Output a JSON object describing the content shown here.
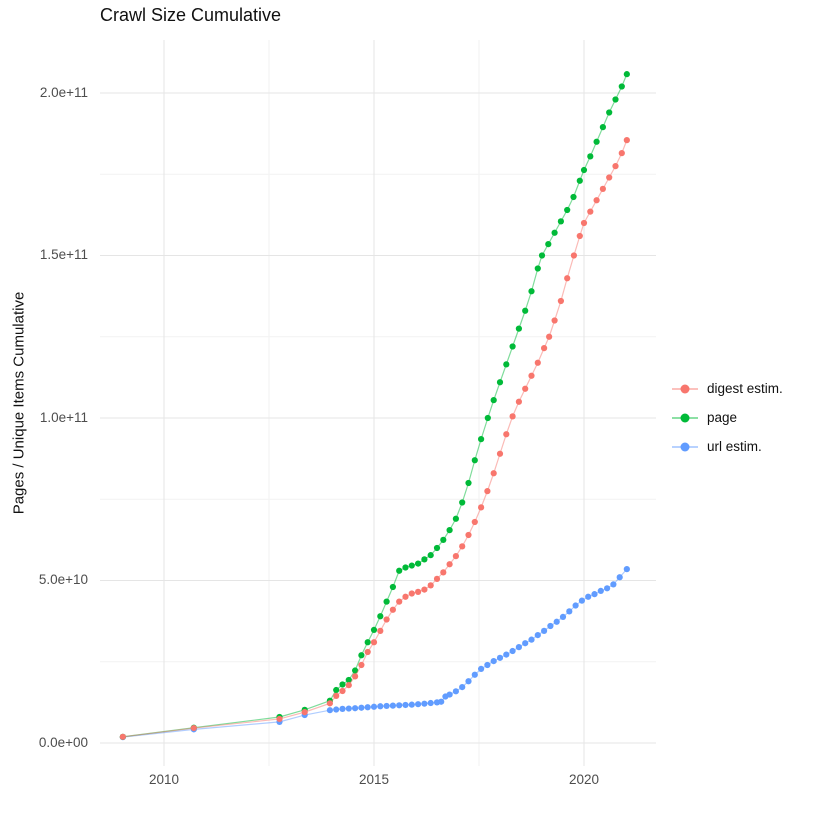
{
  "chart_data": {
    "type": "scatter",
    "title": "Crawl Size Cumulative",
    "xlabel": "",
    "ylabel": "Pages / Unique Items Cumulative",
    "y_unit": "pages (values in billions, 1e9)",
    "xlim": [
      2008.5,
      2021.7
    ],
    "ylim": [
      0,
      216
    ],
    "grid": "on",
    "legend_position": "right-middle",
    "x_ticks": [
      {
        "label": "2010",
        "value": 2010
      },
      {
        "label": "2015",
        "value": 2015
      },
      {
        "label": "2020",
        "value": 2020
      }
    ],
    "x_minor": [
      2012.5,
      2017.5
    ],
    "y_ticks": [
      {
        "label": "0.0e+00",
        "value": 0
      },
      {
        "label": "5.0e+10",
        "value": 50
      },
      {
        "label": "1.0e+11",
        "value": 100
      },
      {
        "label": "1.5e+11",
        "value": 150
      },
      {
        "label": "2.0e+11",
        "value": 200
      }
    ],
    "y_minor": [
      25,
      75,
      125,
      175
    ],
    "series": [
      {
        "name": "digest estim.",
        "color": "#F8766D",
        "points": [
          [
            2009.02,
            1.9
          ],
          [
            2010.71,
            4.6
          ],
          [
            2012.75,
            7.4
          ],
          [
            2013.35,
            9.5
          ],
          [
            2013.95,
            12.2
          ],
          [
            2014.1,
            14.5
          ],
          [
            2014.25,
            16.0
          ],
          [
            2014.4,
            17.8
          ],
          [
            2014.55,
            20.5
          ],
          [
            2014.7,
            24.0
          ],
          [
            2014.85,
            28.0
          ],
          [
            2015.0,
            31.0
          ],
          [
            2015.15,
            34.5
          ],
          [
            2015.3,
            38.0
          ],
          [
            2015.45,
            41.0
          ],
          [
            2015.6,
            43.5
          ],
          [
            2015.75,
            45.0
          ],
          [
            2015.9,
            46.0
          ],
          [
            2016.05,
            46.5
          ],
          [
            2016.2,
            47.2
          ],
          [
            2016.35,
            48.5
          ],
          [
            2016.5,
            50.5
          ],
          [
            2016.65,
            52.5
          ],
          [
            2016.8,
            55.0
          ],
          [
            2016.95,
            57.5
          ],
          [
            2017.1,
            60.5
          ],
          [
            2017.25,
            64.0
          ],
          [
            2017.4,
            68.0
          ],
          [
            2017.55,
            72.5
          ],
          [
            2017.7,
            77.5
          ],
          [
            2017.85,
            83.0
          ],
          [
            2018.0,
            89.0
          ],
          [
            2018.15,
            95.0
          ],
          [
            2018.3,
            100.5
          ],
          [
            2018.45,
            105.0
          ],
          [
            2018.6,
            109.0
          ],
          [
            2018.75,
            113.0
          ],
          [
            2018.9,
            117.0
          ],
          [
            2019.05,
            121.5
          ],
          [
            2019.17,
            125.0
          ],
          [
            2019.3,
            130.0
          ],
          [
            2019.45,
            136.0
          ],
          [
            2019.6,
            143.0
          ],
          [
            2019.76,
            150.0
          ],
          [
            2019.9,
            156.0
          ],
          [
            2020.0,
            160.0
          ],
          [
            2020.15,
            163.5
          ],
          [
            2020.3,
            167.0
          ],
          [
            2020.45,
            170.5
          ],
          [
            2020.6,
            174.0
          ],
          [
            2020.75,
            177.5
          ],
          [
            2020.9,
            181.5
          ],
          [
            2021.02,
            185.5
          ]
        ]
      },
      {
        "name": "page",
        "color": "#00BA38",
        "points": [
          [
            2009.02,
            1.9
          ],
          [
            2010.71,
            4.7
          ],
          [
            2012.75,
            8.0
          ],
          [
            2013.35,
            10.2
          ],
          [
            2013.95,
            13.0
          ],
          [
            2014.1,
            16.3
          ],
          [
            2014.25,
            18.0
          ],
          [
            2014.4,
            19.4
          ],
          [
            2014.55,
            22.3
          ],
          [
            2014.7,
            27.0
          ],
          [
            2014.85,
            31.0
          ],
          [
            2015.0,
            34.8
          ],
          [
            2015.15,
            39.0
          ],
          [
            2015.3,
            43.5
          ],
          [
            2015.45,
            48.0
          ],
          [
            2015.6,
            53.0
          ],
          [
            2015.75,
            54.0
          ],
          [
            2015.9,
            54.6
          ],
          [
            2016.05,
            55.2
          ],
          [
            2016.2,
            56.5
          ],
          [
            2016.35,
            57.8
          ],
          [
            2016.5,
            60.0
          ],
          [
            2016.65,
            62.5
          ],
          [
            2016.8,
            65.5
          ],
          [
            2016.95,
            69.0
          ],
          [
            2017.1,
            74.0
          ],
          [
            2017.25,
            80.0
          ],
          [
            2017.4,
            87.0
          ],
          [
            2017.55,
            93.5
          ],
          [
            2017.71,
            100.0
          ],
          [
            2017.85,
            105.5
          ],
          [
            2018.0,
            111.0
          ],
          [
            2018.15,
            116.5
          ],
          [
            2018.3,
            122.0
          ],
          [
            2018.45,
            127.5
          ],
          [
            2018.6,
            133.0
          ],
          [
            2018.75,
            139.0
          ],
          [
            2018.9,
            146.0
          ],
          [
            2019.0,
            150.0
          ],
          [
            2019.15,
            153.5
          ],
          [
            2019.3,
            157.0
          ],
          [
            2019.45,
            160.5
          ],
          [
            2019.6,
            164.0
          ],
          [
            2019.75,
            168.0
          ],
          [
            2019.9,
            173.0
          ],
          [
            2020.0,
            176.3
          ],
          [
            2020.15,
            180.5
          ],
          [
            2020.3,
            185.0
          ],
          [
            2020.45,
            189.5
          ],
          [
            2020.6,
            194.0
          ],
          [
            2020.75,
            198.0
          ],
          [
            2020.9,
            202.0
          ],
          [
            2021.02,
            205.8
          ]
        ]
      },
      {
        "name": "url estim.",
        "color": "#619CFF",
        "points": [
          [
            2009.02,
            1.8
          ],
          [
            2010.71,
            4.2
          ],
          [
            2012.75,
            6.5
          ],
          [
            2013.35,
            8.6
          ],
          [
            2013.95,
            10.1
          ],
          [
            2014.1,
            10.3
          ],
          [
            2014.25,
            10.5
          ],
          [
            2014.4,
            10.6
          ],
          [
            2014.55,
            10.7
          ],
          [
            2014.7,
            10.85
          ],
          [
            2014.85,
            11.0
          ],
          [
            2015.0,
            11.15
          ],
          [
            2015.15,
            11.3
          ],
          [
            2015.3,
            11.4
          ],
          [
            2015.45,
            11.5
          ],
          [
            2015.6,
            11.6
          ],
          [
            2015.75,
            11.7
          ],
          [
            2015.9,
            11.8
          ],
          [
            2016.05,
            11.95
          ],
          [
            2016.2,
            12.1
          ],
          [
            2016.35,
            12.3
          ],
          [
            2016.5,
            12.5
          ],
          [
            2016.6,
            12.7
          ],
          [
            2016.7,
            14.3
          ],
          [
            2016.8,
            14.9
          ],
          [
            2016.95,
            15.9
          ],
          [
            2017.1,
            17.2
          ],
          [
            2017.25,
            19.0
          ],
          [
            2017.4,
            21.0
          ],
          [
            2017.55,
            22.8
          ],
          [
            2017.7,
            24.0
          ],
          [
            2017.85,
            25.2
          ],
          [
            2018.0,
            26.2
          ],
          [
            2018.15,
            27.2
          ],
          [
            2018.3,
            28.3
          ],
          [
            2018.45,
            29.5
          ],
          [
            2018.6,
            30.7
          ],
          [
            2018.75,
            31.8
          ],
          [
            2018.9,
            33.2
          ],
          [
            2019.05,
            34.5
          ],
          [
            2019.2,
            36.0
          ],
          [
            2019.35,
            37.3
          ],
          [
            2019.5,
            38.8
          ],
          [
            2019.65,
            40.5
          ],
          [
            2019.8,
            42.3
          ],
          [
            2019.95,
            43.8
          ],
          [
            2020.1,
            45.0
          ],
          [
            2020.25,
            45.8
          ],
          [
            2020.4,
            46.8
          ],
          [
            2020.55,
            47.6
          ],
          [
            2020.7,
            48.8
          ],
          [
            2020.85,
            51.0
          ],
          [
            2021.02,
            53.5
          ]
        ]
      }
    ]
  },
  "legend": {
    "items": [
      {
        "label": "digest estim.",
        "color": "#F8766D"
      },
      {
        "label": "page",
        "color": "#00BA38"
      },
      {
        "label": "url estim.",
        "color": "#619CFF"
      }
    ]
  },
  "style": {
    "grid_major_color": "#e5e5e5",
    "grid_minor_color": "#f2f2f2",
    "background": "#ffffff"
  }
}
